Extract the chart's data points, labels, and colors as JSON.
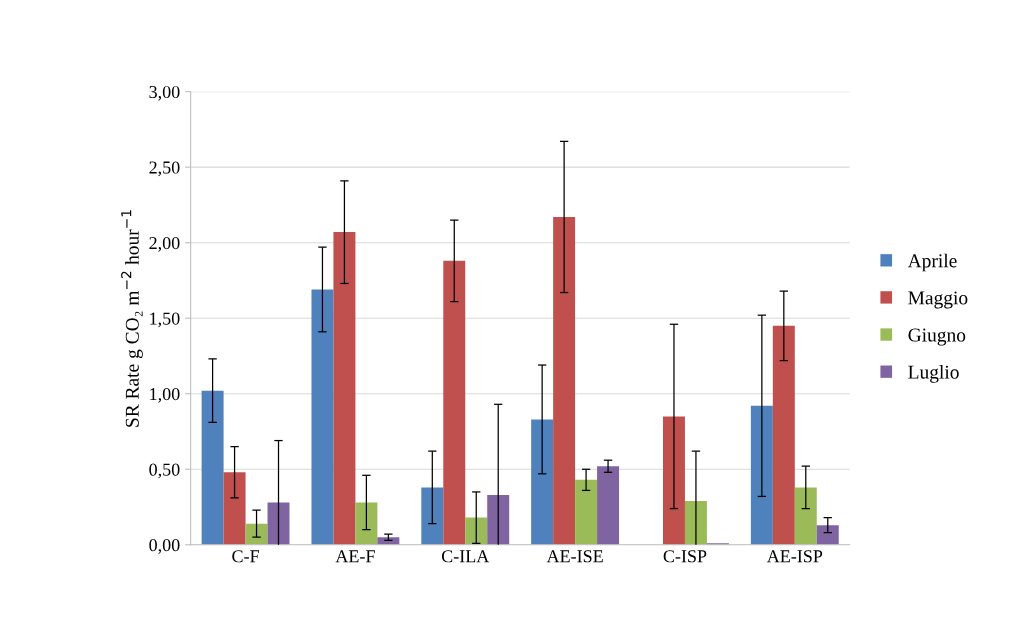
{
  "chart_data": {
    "type": "bar",
    "ylabel": "SR Rate g CO₂ m$^{−2}$ hour$^{−1}$",
    "categories": [
      "C-F",
      "AE-F",
      "C-ILA",
      "AE-ISE",
      "C-ISP",
      "AE-ISP"
    ],
    "series": [
      {
        "name": "Aprile",
        "color": "#4f81bd",
        "values": [
          1.02,
          1.69,
          0.38,
          0.83,
          null,
          0.92
        ],
        "errors": [
          0.21,
          0.28,
          0.24,
          0.36,
          null,
          0.6
        ]
      },
      {
        "name": "Maggio",
        "color": "#c0504d",
        "values": [
          0.48,
          2.07,
          1.88,
          2.17,
          0.85,
          1.45
        ],
        "errors": [
          0.17,
          0.34,
          0.27,
          0.5,
          0.61,
          0.23
        ]
      },
      {
        "name": "Giugno",
        "color": "#9bbb59",
        "values": [
          0.14,
          0.28,
          0.18,
          0.43,
          0.29,
          0.38
        ],
        "errors": [
          0.09,
          0.18,
          0.17,
          0.07,
          0.33,
          0.14
        ]
      },
      {
        "name": "Luglio",
        "color": "#8064a2",
        "values": [
          0.28,
          0.05,
          0.33,
          0.52,
          0.01,
          0.13
        ],
        "errors": [
          0.41,
          0.02,
          0.6,
          0.04,
          null,
          0.05
        ]
      }
    ],
    "ylim": [
      0,
      3
    ],
    "yticks": [
      {
        "value": 0,
        "label": "0,00"
      },
      {
        "value": 0.5,
        "label": "0,50"
      },
      {
        "value": 1,
        "label": "1,00"
      },
      {
        "value": 1.5,
        "label": "1,50"
      },
      {
        "value": 2,
        "label": "2,00"
      },
      {
        "value": 2.5,
        "label": "2,50"
      },
      {
        "value": 3,
        "label": "3,00"
      }
    ],
    "grid": "y",
    "legend": "right"
  }
}
